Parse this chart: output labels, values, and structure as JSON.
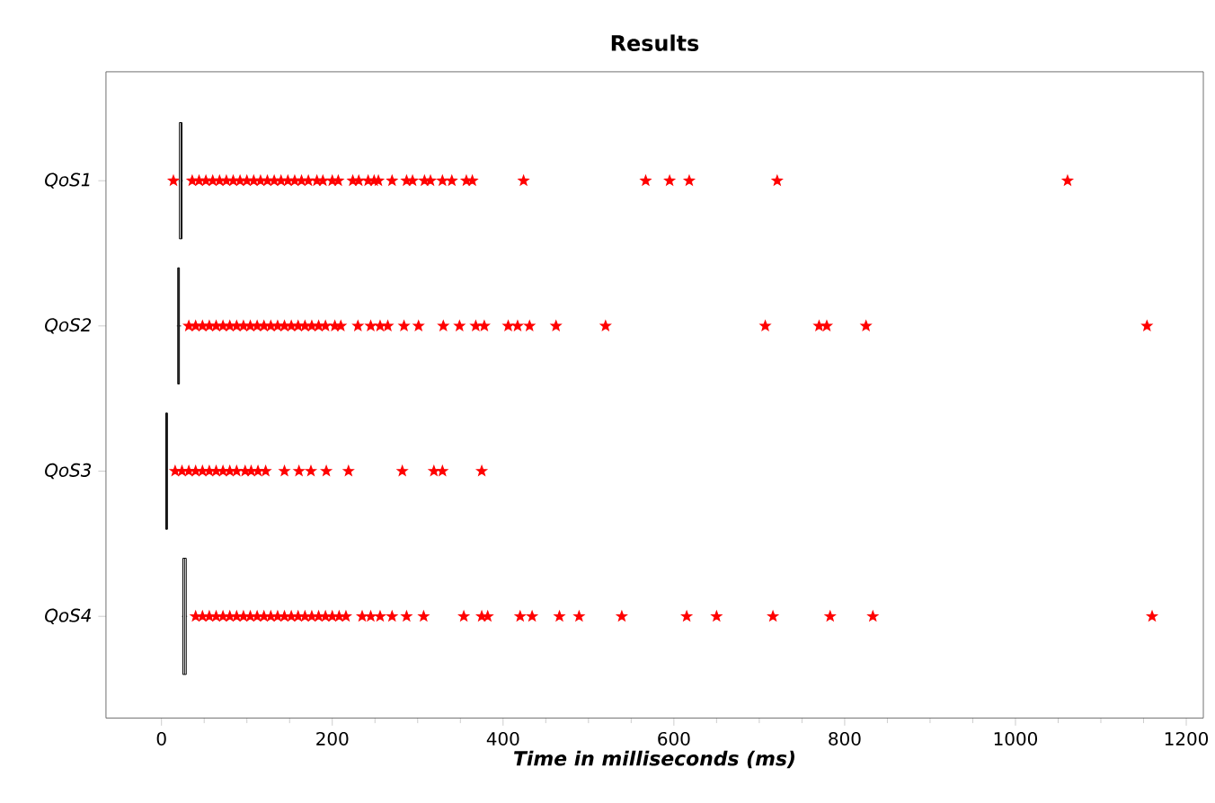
{
  "chart_data": {
    "type": "box",
    "title": "Results",
    "xlabel": "Time in milliseconds (ms)",
    "categories": [
      "*QoS1*",
      "*QoS2*",
      "*QoS3*",
      "*QoS4*"
    ],
    "orientation": "horizontal",
    "xlim": [
      -65,
      1220
    ],
    "xticks": [
      0,
      200,
      400,
      600,
      800,
      1000,
      1200
    ],
    "marker": "star",
    "grid": false,
    "series": [
      {
        "color": "#000000",
        "boxes": [
          {
            "low": 20,
            "q1": 21,
            "median": 23,
            "q3": 24,
            "high": 25
          },
          {
            "low": 18,
            "q1": 19,
            "median": 20,
            "q3": 21,
            "high": 23
          },
          {
            "low": 5,
            "q1": 5,
            "median": 6,
            "q3": 7,
            "high": 7
          },
          {
            "low": 24,
            "q1": 25,
            "median": 27,
            "q3": 29,
            "high": 30
          }
        ]
      },
      {
        "type": "scatter",
        "color": "#ff0000",
        "x": [
          "*QoS1*",
          "*QoS1*",
          "*QoS1*",
          "*QoS1*",
          "*QoS1*",
          "*QoS1*",
          "*QoS1*",
          "*QoS1*",
          "*QoS1*",
          "*QoS1*",
          "*QoS1*",
          "*QoS1*",
          "*QoS1*",
          "*QoS1*",
          "*QoS1*",
          "*QoS1*",
          "*QoS1*",
          "*QoS1*",
          "*QoS1*",
          "*QoS1*",
          "*QoS1*",
          "*QoS1*",
          "*QoS1*",
          "*QoS1*",
          "*QoS1*",
          "*QoS1*",
          "*QoS1*",
          "*QoS1*",
          "*QoS1*",
          "*QoS1*",
          "*QoS1*",
          "*QoS1*",
          "*QoS1*",
          "*QoS1*",
          "*QoS1*",
          "*QoS1*",
          "*QoS1*",
          "*QoS1*",
          "*QoS1*",
          "*QoS1*",
          "*QoS1*",
          "*QoS1*",
          "*QoS1*",
          "*QoS2*",
          "*QoS2*",
          "*QoS2*",
          "*QoS2*",
          "*QoS2*",
          "*QoS2*",
          "*QoS2*",
          "*QoS2*",
          "*QoS2*",
          "*QoS2*",
          "*QoS2*",
          "*QoS2*",
          "*QoS2*",
          "*QoS2*",
          "*QoS2*",
          "*QoS2*",
          "*QoS2*",
          "*QoS2*",
          "*QoS2*",
          "*QoS2*",
          "*QoS2*",
          "*QoS2*",
          "*QoS2*",
          "*QoS2*",
          "*QoS2*",
          "*QoS2*",
          "*QoS2*",
          "*QoS2*",
          "*QoS2*",
          "*QoS2*",
          "*QoS2*",
          "*QoS2*",
          "*QoS2*",
          "*QoS2*",
          "*QoS2*",
          "*QoS2*",
          "*QoS2*",
          "*QoS2*",
          "*QoS2*",
          "*QoS2*",
          "*QoS2*",
          "*QoS2*",
          "*QoS2*",
          "*QoS3*",
          "*QoS3*",
          "*QoS3*",
          "*QoS3*",
          "*QoS3*",
          "*QoS3*",
          "*QoS3*",
          "*QoS3*",
          "*QoS3*",
          "*QoS3*",
          "*QoS3*",
          "*QoS3*",
          "*QoS3*",
          "*QoS3*",
          "*QoS3*",
          "*QoS3*",
          "*QoS3*",
          "*QoS3*",
          "*QoS3*",
          "*QoS3*",
          "*QoS3*",
          "*QoS3*",
          "*QoS3*",
          "*QoS4*",
          "*QoS4*",
          "*QoS4*",
          "*QoS4*",
          "*QoS4*",
          "*QoS4*",
          "*QoS4*",
          "*QoS4*",
          "*QoS4*",
          "*QoS4*",
          "*QoS4*",
          "*QoS4*",
          "*QoS4*",
          "*QoS4*",
          "*QoS4*",
          "*QoS4*",
          "*QoS4*",
          "*QoS4*",
          "*QoS4*",
          "*QoS4*",
          "*QoS4*",
          "*QoS4*",
          "*QoS4*",
          "*QoS4*",
          "*QoS4*",
          "*QoS4*",
          "*QoS4*",
          "*QoS4*",
          "*QoS4*",
          "*QoS4*",
          "*QoS4*",
          "*QoS4*",
          "*QoS4*",
          "*QoS4*",
          "*QoS4*",
          "*QoS4*",
          "*QoS4*",
          "*QoS4*",
          "*QoS4*",
          "*QoS4*",
          "*QoS4*",
          "*QoS4*",
          "*QoS4*"
        ],
        "values": [
          14,
          36,
          44,
          52,
          60,
          68,
          76,
          84,
          92,
          100,
          108,
          116,
          124,
          132,
          140,
          148,
          156,
          164,
          172,
          182,
          189,
          200,
          207,
          224,
          231,
          242,
          249,
          254,
          270,
          287,
          294,
          308,
          315,
          329,
          340,
          357,
          364,
          424,
          567,
          595,
          618,
          721,
          1061,
          32,
          40,
          48,
          56,
          64,
          72,
          80,
          88,
          96,
          104,
          112,
          120,
          128,
          136,
          144,
          152,
          160,
          168,
          176,
          184,
          192,
          203,
          210,
          230,
          245,
          256,
          265,
          284,
          301,
          330,
          349,
          368,
          378,
          406,
          417,
          431,
          462,
          520,
          707,
          770,
          779,
          825,
          1154,
          16,
          24,
          32,
          40,
          48,
          56,
          64,
          72,
          80,
          88,
          98,
          105,
          113,
          122,
          144,
          161,
          175,
          193,
          219,
          282,
          319,
          329,
          375,
          40,
          48,
          56,
          64,
          72,
          80,
          88,
          96,
          104,
          112,
          120,
          128,
          136,
          144,
          152,
          160,
          168,
          176,
          184,
          192,
          200,
          208,
          216,
          235,
          245,
          256,
          270,
          287,
          307,
          354,
          375,
          382,
          420,
          434,
          466,
          489,
          539,
          615,
          650,
          716,
          783,
          833,
          1160
        ]
      }
    ]
  }
}
